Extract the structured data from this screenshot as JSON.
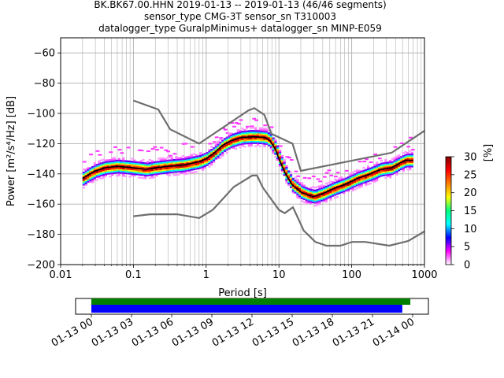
{
  "title_lines": [
    "BK.BK67.00.HHN   2019-01-13 -- 2019-01-13  (46/46 segments)",
    "sensor_type CMG-3T sensor_sn T310003",
    "datalogger_type GuralpMinimus+ datalogger_sn MINP-E059"
  ],
  "chart_data": {
    "type": "heatmap",
    "x_scale": "log",
    "xlim": [
      0.01,
      1000
    ],
    "ylim": [
      -200,
      -50
    ],
    "xlabel": "Period [s]",
    "ylabel": "Power [m²/s⁴/Hz] [dB]",
    "x_ticks": [
      {
        "v": 0.01,
        "label": "0.01"
      },
      {
        "v": 0.1,
        "label": "0.1"
      },
      {
        "v": 1,
        "label": "1"
      },
      {
        "v": 10,
        "label": "10"
      },
      {
        "v": 100,
        "label": "100"
      },
      {
        "v": 1000,
        "label": "1000"
      }
    ],
    "y_ticks": [
      {
        "v": -60,
        "label": "−60"
      },
      {
        "v": -80,
        "label": "−80"
      },
      {
        "v": -100,
        "label": "−100"
      },
      {
        "v": -120,
        "label": "−120"
      },
      {
        "v": -140,
        "label": "−140"
      },
      {
        "v": -160,
        "label": "−160"
      },
      {
        "v": -180,
        "label": "−180"
      },
      {
        "v": -200,
        "label": "−200"
      }
    ],
    "grid": true,
    "mean_curve": [
      [
        0.02,
        -143
      ],
      [
        0.025,
        -140
      ],
      [
        0.03,
        -138
      ],
      [
        0.04,
        -136
      ],
      [
        0.06,
        -135
      ],
      [
        0.1,
        -136
      ],
      [
        0.15,
        -137
      ],
      [
        0.2,
        -136
      ],
      [
        0.3,
        -135
      ],
      [
        0.5,
        -134
      ],
      [
        0.8,
        -132
      ],
      [
        1.0,
        -130
      ],
      [
        1.3,
        -126
      ],
      [
        1.7,
        -121
      ],
      [
        2.2,
        -118
      ],
      [
        3.0,
        -116
      ],
      [
        4.0,
        -115.5
      ],
      [
        5.0,
        -115.5
      ],
      [
        6.5,
        -116
      ],
      [
        7.5,
        -118
      ],
      [
        9.0,
        -124
      ],
      [
        10.0,
        -130
      ],
      [
        12.0,
        -139
      ],
      [
        15.0,
        -147
      ],
      [
        20.0,
        -152
      ],
      [
        25.0,
        -154
      ],
      [
        30.0,
        -155
      ],
      [
        40.0,
        -153
      ],
      [
        55.0,
        -150
      ],
      [
        80.0,
        -147
      ],
      [
        120.0,
        -143
      ],
      [
        180.0,
        -140
      ],
      [
        250.0,
        -137
      ],
      [
        350.0,
        -136
      ],
      [
        450.0,
        -133
      ],
      [
        550.0,
        -131
      ],
      [
        700.0,
        -131
      ]
    ],
    "nhnm": [
      [
        0.1,
        -91.5
      ],
      [
        0.22,
        -97.4
      ],
      [
        0.32,
        -110.5
      ],
      [
        0.8,
        -120
      ],
      [
        3.8,
        -98
      ],
      [
        4.6,
        -96.5
      ],
      [
        6.3,
        -101
      ],
      [
        7.9,
        -113.5
      ],
      [
        15.4,
        -120
      ],
      [
        20.0,
        -138
      ],
      [
        354.8,
        -126
      ],
      [
        1000,
        -111.5
      ]
    ],
    "nlnm": [
      [
        0.1,
        -168
      ],
      [
        0.17,
        -166.7
      ],
      [
        0.4,
        -166.7
      ],
      [
        0.8,
        -169.2
      ],
      [
        1.24,
        -163.7
      ],
      [
        2.4,
        -148.6
      ],
      [
        4.3,
        -141.1
      ],
      [
        5.0,
        -141.1
      ],
      [
        6.0,
        -149
      ],
      [
        10.0,
        -163.8
      ],
      [
        12.0,
        -166
      ],
      [
        15.6,
        -162.1
      ],
      [
        21.9,
        -177.5
      ],
      [
        31.6,
        -185
      ],
      [
        45.0,
        -187.5
      ],
      [
        70.0,
        -187.5
      ],
      [
        101,
        -185
      ],
      [
        154,
        -185
      ],
      [
        328,
        -187.5
      ],
      [
        600,
        -184.4
      ],
      [
        1000,
        -178
      ]
    ],
    "colorbar": {
      "label": "[%]",
      "min": 0,
      "max": 30,
      "ticks": [
        "0",
        "5",
        "10",
        "15",
        "20",
        "25",
        "30"
      ],
      "colors": [
        "#ffffff",
        "#ff00ff",
        "#0000ff",
        "#00ffff",
        "#00ff80",
        "#ffff00",
        "#ff8000",
        "#ff0000",
        "#800000"
      ]
    },
    "colors": {
      "mean": "#000000",
      "noise_models": "#6e6e6e",
      "grid": "#b0b0b0"
    }
  },
  "timeline": {
    "ticks": [
      "01-13 00",
      "01-13 03",
      "01-13 06",
      "01-13 09",
      "01-13 12",
      "01-13 15",
      "01-13 18",
      "01-13 21",
      "01-14 00"
    ],
    "data_coverage": [
      0.0,
      0.983
    ],
    "psd_coverage": [
      0.0,
      0.958
    ],
    "colors": {
      "data": "#008000",
      "psd": "#0000ff"
    }
  }
}
